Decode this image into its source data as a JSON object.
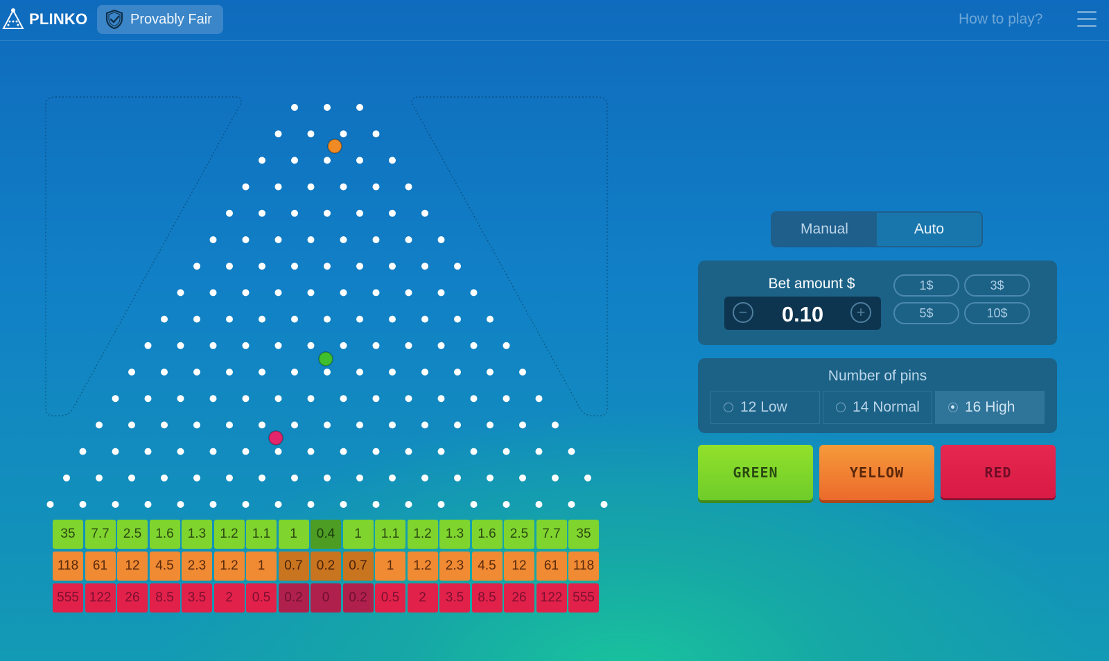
{
  "header": {
    "logo_text": "PLINKO",
    "badge_label": "Provably Fair",
    "how_to_play": "How to play?",
    "logo_icon": "pyramid-icon",
    "badge_icon": "shield-check-icon",
    "menu_icon": "hamburger-icon"
  },
  "board": {
    "pin_rows": 16,
    "balls": [
      {
        "color": "orange",
        "hex": "#f08a24"
      },
      {
        "color": "green",
        "hex": "#3fbf2c"
      },
      {
        "color": "red",
        "hex": "#e5256b"
      }
    ]
  },
  "multipliers": {
    "green": [
      "35",
      "7.7",
      "2.5",
      "1.6",
      "1.3",
      "1.2",
      "1.1",
      "1",
      "0.4",
      "1",
      "1.1",
      "1.2",
      "1.3",
      "1.6",
      "2.5",
      "7.7",
      "35"
    ],
    "yellow": [
      "118",
      "61",
      "12",
      "4.5",
      "2.3",
      "1.2",
      "1",
      "0.7",
      "0.2",
      "0.7",
      "1",
      "1.2",
      "2.3",
      "4.5",
      "12",
      "61",
      "118"
    ],
    "red": [
      "555",
      "122",
      "26",
      "8.5",
      "3.5",
      "2",
      "0.5",
      "0.2",
      "0",
      "0.2",
      "0.5",
      "2",
      "3.5",
      "8.5",
      "26",
      "122",
      "555"
    ],
    "colors": {
      "green": "#7fd42e",
      "yellow": "#f08a33",
      "red": "#e1214a"
    }
  },
  "controls": {
    "mode": {
      "manual": "Manual",
      "auto": "Auto",
      "selected": "Manual"
    },
    "bet": {
      "label": "Bet amount $",
      "value": "0.10",
      "minus": "−",
      "plus": "+",
      "quick": [
        "1$",
        "3$",
        "5$",
        "10$"
      ]
    },
    "pins": {
      "label": "Number of pins",
      "options": [
        "12 Low",
        "14 Normal",
        "16 High"
      ],
      "selected": "16 High"
    },
    "play": {
      "green": "GREEN",
      "yellow": "YELLOW",
      "red": "RED"
    }
  }
}
